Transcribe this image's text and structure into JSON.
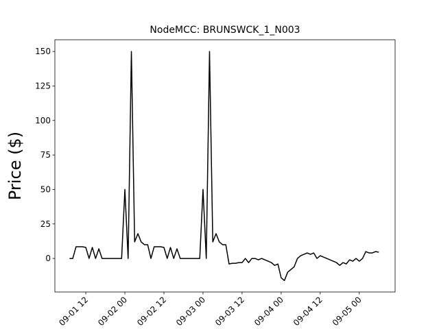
{
  "chart_data": {
    "type": "line",
    "title": "NodeMCC: BRUNSWCK_1_N003",
    "ylabel": "Price ($)",
    "color": "#000000",
    "x": [
      "09-01 07",
      "09-01 08",
      "09-01 09",
      "09-01 10",
      "09-01 11",
      "09-01 12",
      "09-01 13",
      "09-01 14",
      "09-01 15",
      "09-01 16",
      "09-01 17",
      "09-01 18",
      "09-01 19",
      "09-01 20",
      "09-01 21",
      "09-01 22",
      "09-01 23",
      "09-02 00",
      "09-02 01",
      "09-02 02",
      "09-02 03",
      "09-02 04",
      "09-02 05",
      "09-02 06",
      "09-02 07",
      "09-02 08",
      "09-02 09",
      "09-02 10",
      "09-02 11",
      "09-02 12",
      "09-02 13",
      "09-02 14",
      "09-02 15",
      "09-02 16",
      "09-02 17",
      "09-02 18",
      "09-02 19",
      "09-02 20",
      "09-02 21",
      "09-02 22",
      "09-02 23",
      "09-03 00",
      "09-03 01",
      "09-03 02",
      "09-03 03",
      "09-03 04",
      "09-03 05",
      "09-03 06",
      "09-03 07",
      "09-03 08",
      "09-03 09",
      "09-03 10",
      "09-03 11",
      "09-03 12",
      "09-03 13",
      "09-03 14",
      "09-03 15",
      "09-03 16",
      "09-03 17",
      "09-03 18",
      "09-03 19",
      "09-03 20",
      "09-03 21",
      "09-03 22",
      "09-03 23",
      "09-04 00",
      "09-04 01",
      "09-04 02",
      "09-04 03",
      "09-04 04",
      "09-04 05",
      "09-04 06",
      "09-04 07",
      "09-04 08",
      "09-04 09",
      "09-04 10",
      "09-04 11",
      "09-04 12",
      "09-04 13",
      "09-04 14",
      "09-04 15",
      "09-04 16",
      "09-04 17",
      "09-04 18",
      "09-04 19",
      "09-04 20",
      "09-04 21",
      "09-04 22",
      "09-04 23",
      "09-05 00",
      "09-05 01",
      "09-05 02",
      "09-05 03",
      "09-05 04",
      "09-05 05",
      "09-05 06"
    ],
    "values": [
      0,
      0,
      8.5,
      8.5,
      8.5,
      8,
      0,
      8,
      0,
      7,
      0,
      0,
      0,
      0,
      0,
      0,
      0,
      50,
      0,
      150,
      12,
      18,
      12,
      10,
      10,
      0,
      8.5,
      8.5,
      8.5,
      8,
      0,
      8,
      0,
      7,
      0,
      0,
      0,
      0,
      0,
      0,
      0,
      50,
      0,
      150,
      12,
      18,
      12,
      10,
      10,
      -4,
      -3.5,
      -3.5,
      -3,
      -3,
      0,
      -3,
      0,
      0,
      -1,
      0,
      -1,
      -2,
      -3,
      -5,
      -4,
      -14,
      -16,
      -10,
      -8,
      -6,
      0,
      2,
      3,
      4,
      3,
      4,
      0,
      2,
      1,
      0,
      -1,
      -2,
      -3,
      -5,
      -3,
      -4,
      -1,
      -2,
      0,
      -2,
      0,
      5,
      4,
      4,
      5,
      4.5
    ],
    "xlim": [
      "09-01 02:30",
      "09-05 11:00"
    ],
    "xticks": [
      "09-01 12",
      "09-02 00",
      "09-02 12",
      "09-03 00",
      "09-03 12",
      "09-04 00",
      "09-04 12",
      "09-05 00"
    ],
    "ylim": [
      -24.3,
      158.5
    ],
    "yticks": [
      0,
      25,
      50,
      75,
      100,
      125,
      150
    ]
  }
}
